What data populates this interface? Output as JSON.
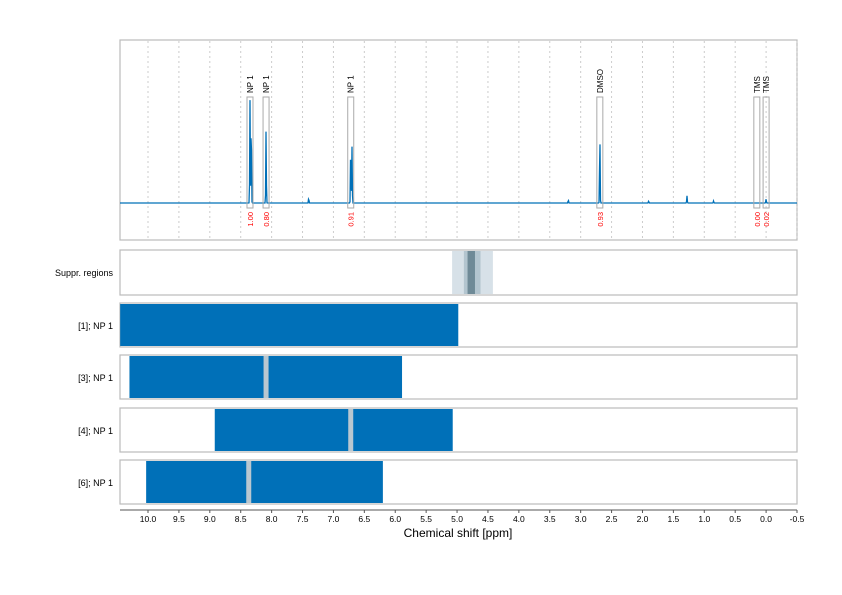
{
  "chart_data": {
    "type": "line",
    "xlabel": "Chemical shift [ppm]",
    "xlim": [
      10.45,
      -0.5
    ],
    "x_reversed": true,
    "grid": true,
    "x_ticks": [
      "10.0",
      "9.5",
      "9.0",
      "8.5",
      "8.0",
      "7.5",
      "7.0",
      "6.5",
      "6.0",
      "5.5",
      "5.0",
      "4.5",
      "4.0",
      "3.5",
      "3.0",
      "2.5",
      "2.0",
      "1.5",
      "1.0",
      "0.5",
      "0.0",
      "-0.5"
    ],
    "line_color": "#0070b8",
    "spectrum_peaks": [
      {
        "ppm": 8.35,
        "rel_height": 1.0
      },
      {
        "ppm": 8.33,
        "rel_height": 0.9
      },
      {
        "ppm": 8.09,
        "rel_height": 0.71
      },
      {
        "ppm": 7.4,
        "rel_height": 0.05
      },
      {
        "ppm": 6.72,
        "rel_height": 0.63
      },
      {
        "ppm": 6.7,
        "rel_height": 0.55
      },
      {
        "ppm": 3.2,
        "rel_height": 0.03
      },
      {
        "ppm": 2.69,
        "rel_height": 0.7
      },
      {
        "ppm": 1.9,
        "rel_height": 0.02
      },
      {
        "ppm": 1.28,
        "rel_height": 0.07
      },
      {
        "ppm": 0.85,
        "rel_height": 0.02
      },
      {
        "ppm": 0.0,
        "rel_height": 0.04
      }
    ],
    "integrals": [
      {
        "label": "NP 1",
        "ppm": 8.35,
        "value": "1.00"
      },
      {
        "label": "NP 1",
        "ppm": 8.09,
        "value": "0.80"
      },
      {
        "label": "NP 1",
        "ppm": 6.72,
        "value": "0.91"
      },
      {
        "label": "DMSO",
        "ppm": 2.69,
        "value": "0.93"
      },
      {
        "label": "TMS",
        "ppm": 0.15,
        "value": "0.00"
      },
      {
        "label": "TMS",
        "ppm": 0.0,
        "value": "0.02"
      }
    ],
    "integral_value_color": "#ff0000",
    "suppressed_regions": {
      "label": "Suppr. regions",
      "bands": [
        {
          "from": 5.08,
          "to": 4.42,
          "color": "#d7e1e8"
        },
        {
          "from": 4.89,
          "to": 4.62,
          "color": "#b3c5cf"
        },
        {
          "from": 4.83,
          "to": 4.71,
          "color": "#6f8a97"
        }
      ]
    },
    "range_rows": [
      {
        "label": "[1]; NP 1",
        "from": 10.45,
        "to": 4.98,
        "gaps": []
      },
      {
        "label": "[3]; NP 1",
        "from": 10.3,
        "to": 5.89,
        "gaps": [
          8.09
        ]
      },
      {
        "label": "[4]; NP 1",
        "from": 8.92,
        "to": 5.07,
        "gaps": [
          6.72
        ]
      },
      {
        "label": "[6]; NP 1",
        "from": 10.03,
        "to": 6.2,
        "gaps": [
          8.37
        ]
      }
    ],
    "bar_color": "#0070b8",
    "gap_color": "#b9c7d0"
  }
}
